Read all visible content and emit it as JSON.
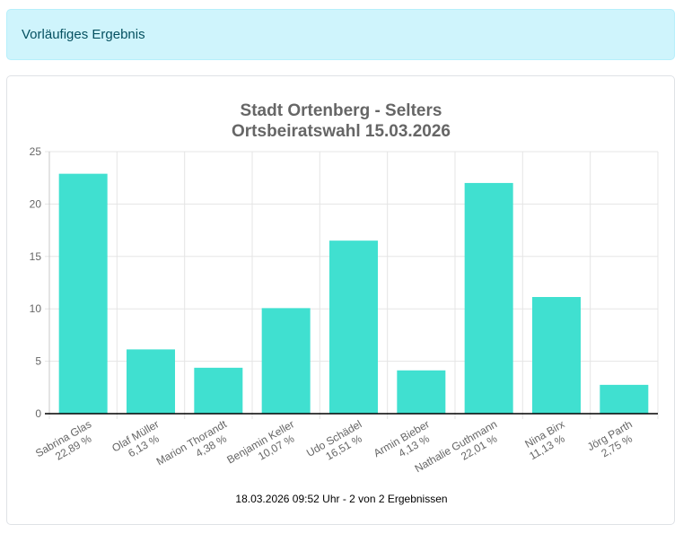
{
  "alert": {
    "text": "Vorläufiges Ergebnis"
  },
  "chart_data": {
    "type": "bar",
    "title": [
      "Stadt Ortenberg - Selters",
      "Ortsbeiratswahl 15.03.2026"
    ],
    "categories": [
      "Sabrina Glas",
      "Olaf Müller",
      "Marion Thorandt",
      "Benjamin Keller",
      "Udo Schädel",
      "Armin Bieber",
      "Nathalie Guthmann",
      "Nina Birx",
      "Jörg Parth"
    ],
    "percent_labels": [
      "22,89 %",
      "6,13 %",
      "4,38 %",
      "10,07 %",
      "16,51 %",
      "4,13 %",
      "22,01 %",
      "11,13 %",
      "2,75 %"
    ],
    "values": [
      22.89,
      6.13,
      4.38,
      10.07,
      16.51,
      4.13,
      22.01,
      11.13,
      2.75
    ],
    "ylim": [
      0,
      25
    ],
    "yticks": [
      0,
      5,
      10,
      15,
      20,
      25
    ],
    "grid": true,
    "bar_color": "#40e0d0"
  },
  "footer": {
    "text": "18.03.2026 09:52 Uhr - 2 von 2 Ergebnissen"
  }
}
